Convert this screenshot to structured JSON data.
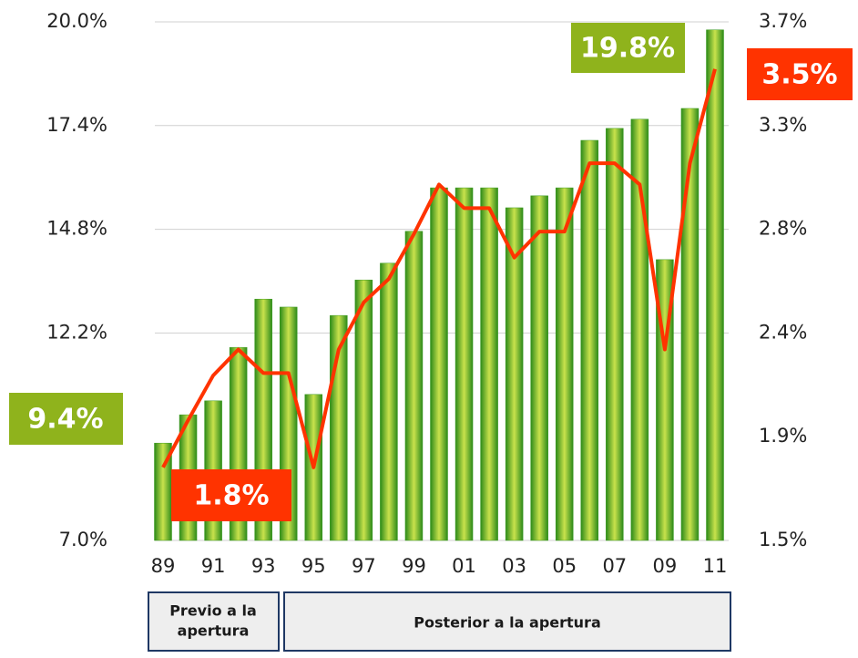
{
  "chart_data": {
    "type": "bar-line",
    "categories": [
      "89",
      null,
      "91",
      null,
      "93",
      null,
      "95",
      null,
      "97",
      null,
      "99",
      null,
      "01",
      null,
      "03",
      null,
      "05",
      null,
      "07",
      null,
      "09",
      null,
      "11"
    ],
    "series": [
      {
        "color": "#3a9a1c",
        "values": [
          9.44,
          10.15,
          10.5,
          11.84,
          13.05,
          12.85,
          10.66,
          12.64,
          13.53,
          13.95,
          14.75,
          15.84,
          15.84,
          15.84,
          15.34,
          15.64,
          15.84,
          17.03,
          17.33,
          17.56,
          14.04,
          17.83,
          19.8
        ]
      },
      {
        "color": "#ff3300",
        "axis": "y2",
        "values": [
          1.81,
          2.01,
          2.2,
          2.31,
          2.21,
          2.21,
          1.81,
          2.31,
          2.51,
          2.61,
          2.8,
          3.01,
          2.91,
          2.91,
          2.7,
          2.81,
          2.81,
          3.1,
          3.1,
          3.01,
          2.31,
          3.1,
          3.5
        ]
      }
    ],
    "ylim": [
      7,
      20
    ],
    "yticks": [
      {
        "value": 7,
        "label": "7.0%"
      },
      {
        "value": 12.2,
        "label": "12.2%"
      },
      {
        "value": 14.8,
        "label": "14.8%"
      },
      {
        "value": 17.4,
        "label": "17.4%"
      },
      {
        "value": 20,
        "label": "20.0%"
      }
    ],
    "y2lim": [
      1.5,
      3.7
    ],
    "y2ticks": [
      {
        "value": 1.5,
        "label": "1.5%"
      },
      {
        "value": 1.94,
        "label": "1.9%"
      },
      {
        "value": 2.38,
        "label": "2.4%"
      },
      {
        "value": 2.82,
        "label": "2.8%"
      },
      {
        "value": 3.26,
        "label": "3.3%"
      },
      {
        "value": 3.7,
        "label": "3.7%"
      }
    ],
    "grid": true,
    "annotations": [
      "9.4%",
      "1.8%",
      "19.8%",
      "3.5%"
    ],
    "periods": [
      [
        "Previo a la",
        "apertura"
      ],
      [
        "Posterior a la apertura"
      ]
    ]
  }
}
